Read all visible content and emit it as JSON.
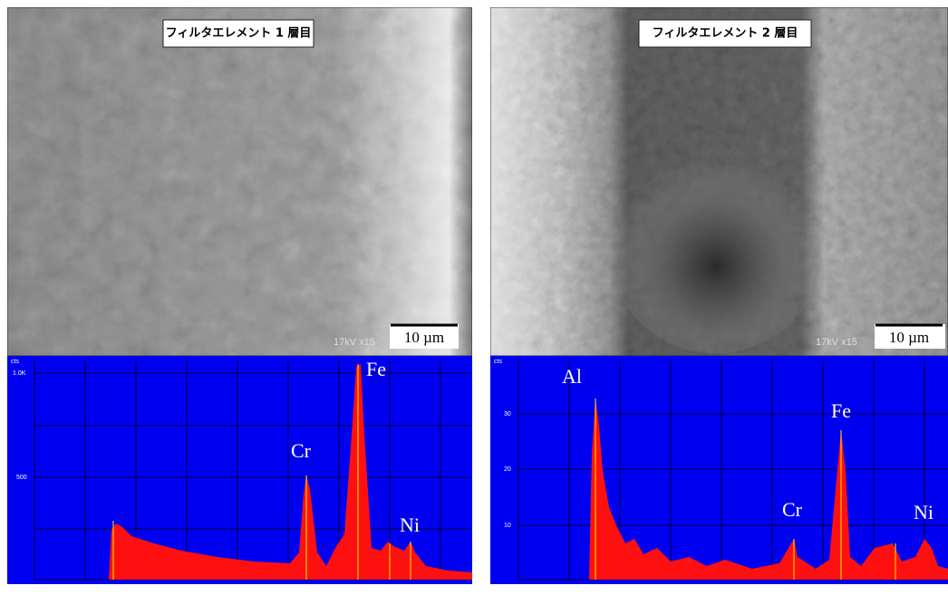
{
  "panels": [
    {
      "title": "フィルタエレメント 1 層目",
      "scale_bar": "10 µm",
      "instrument": "17kV x15",
      "spectrum": {
        "unit": "cts",
        "ticks": [
          "1.0K",
          "500"
        ],
        "peaks": [
          "Cr",
          "Fe",
          "Ni"
        ]
      }
    },
    {
      "title": "フィルタエレメント 2 層目",
      "scale_bar": "10 µm",
      "instrument": "17kV x15",
      "spectrum": {
        "unit": "cts",
        "ticks": [
          "30",
          "20",
          "10"
        ],
        "peaks": [
          "Al",
          "Fe",
          "Cr",
          "Ni"
        ]
      }
    }
  ]
}
